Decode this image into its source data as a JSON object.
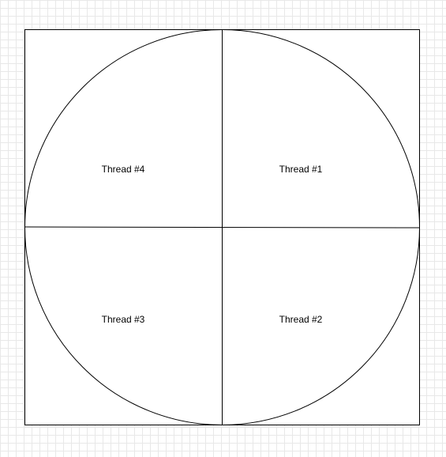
{
  "diagram": {
    "quadrants": [
      {
        "label": "Thread #1"
      },
      {
        "label": "Thread #2"
      },
      {
        "label": "Thread #3"
      },
      {
        "label": "Thread #4"
      }
    ],
    "colors": {
      "stroke": "#000000",
      "fill": "#ffffff",
      "grid": "#e8e8e8",
      "text": "#000000"
    }
  }
}
